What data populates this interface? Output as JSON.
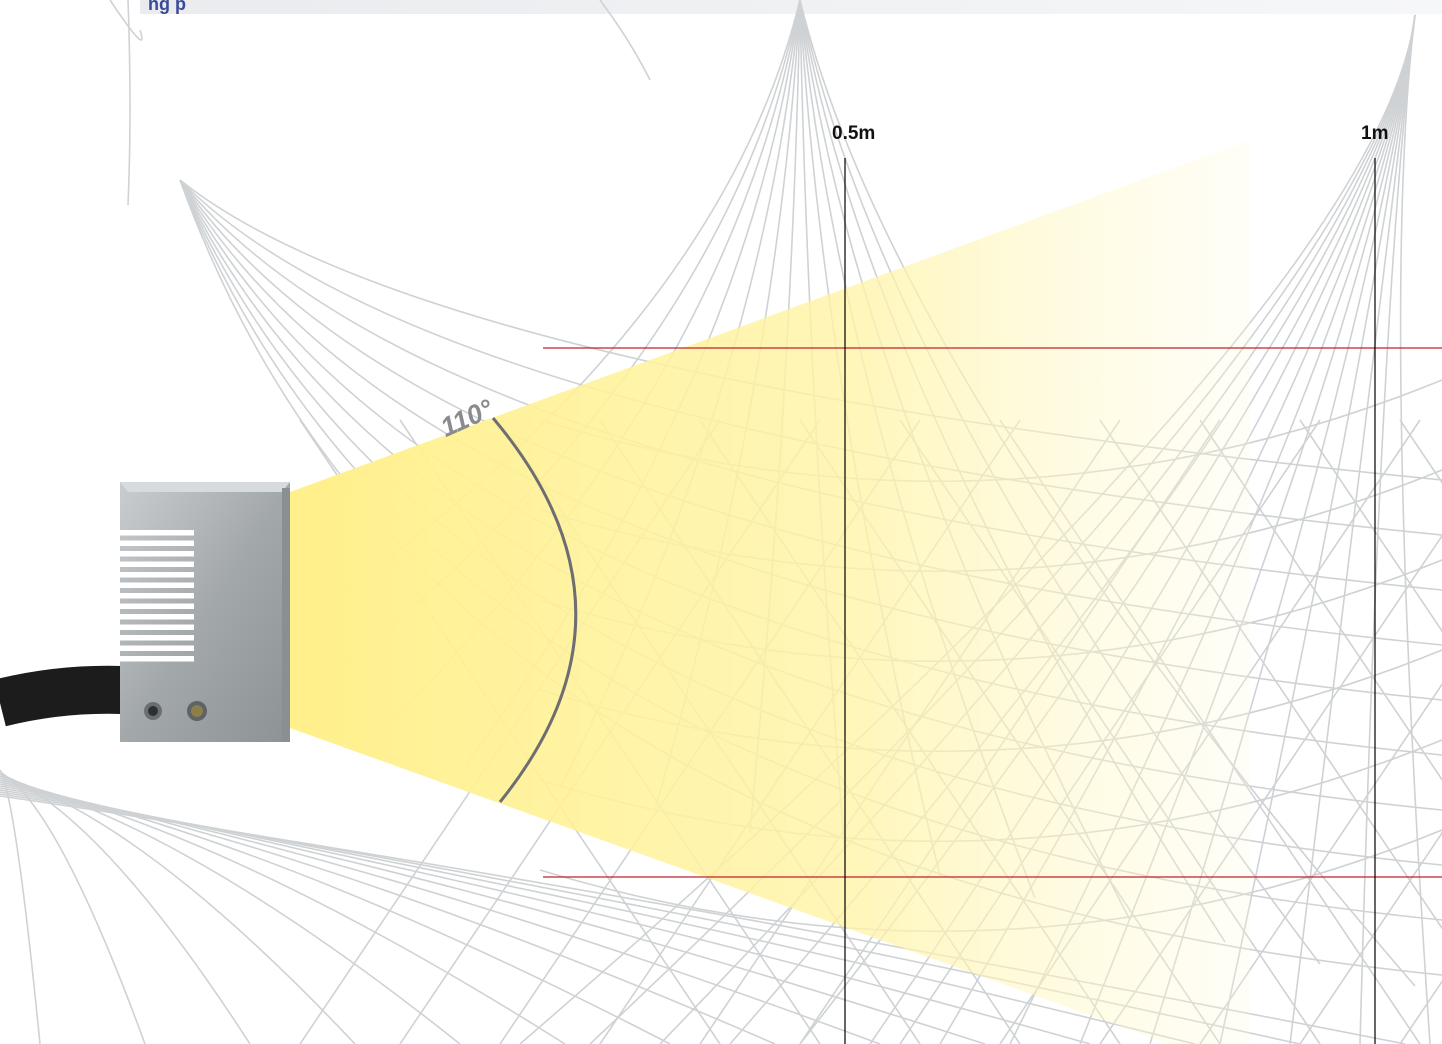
{
  "header": {
    "title_fragment": "ng  p",
    "bar_color": "#3a4a9a"
  },
  "diagram": {
    "beam_angle_label": "110°",
    "distance_markers": [
      {
        "label": "0.5m"
      },
      {
        "label": "1m"
      }
    ],
    "colors": {
      "beam": "#fff08a",
      "boundary_lines": "#c0202a",
      "distance_lines": "#000000",
      "background_pattern": "#cfd2d4",
      "sensor_body": "#a9adb0",
      "arc": "#6e6e70"
    },
    "sensor": {
      "icon": "sensor-device-icon",
      "indicator_leds": 2,
      "heat_sink_fins": 13
    }
  }
}
